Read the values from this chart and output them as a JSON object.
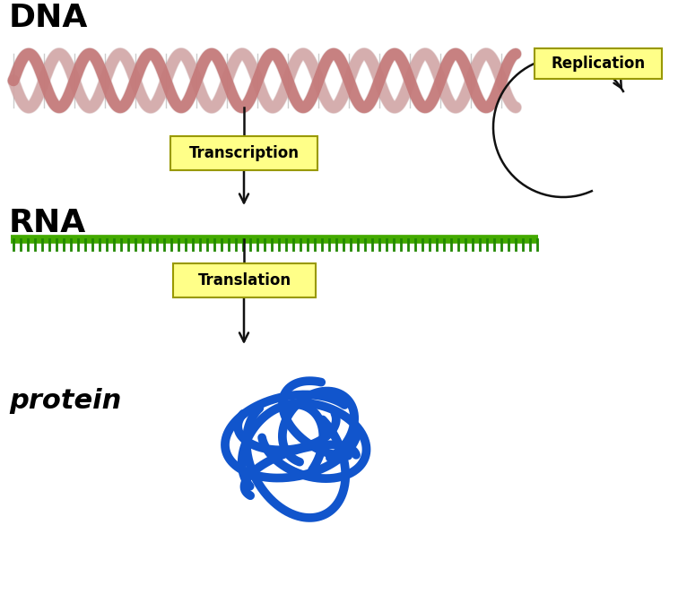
{
  "bg_color": "#ffffff",
  "dna_label": "DNA",
  "rna_label": "RNA",
  "protein_label": "protein",
  "transcription_label": "Transcription",
  "translation_label": "Translation",
  "replication_label": "Replication",
  "label_color": "#000000",
  "box_facecolor": "#ffff88",
  "box_edgecolor": "#999900",
  "dna_strand1_color": "#c47878",
  "dna_strand2_color": "#d4aaaa",
  "dna_rung_color": "#aaaaaa",
  "rna_bar_color": "#44aa00",
  "rna_teeth_color": "#228800",
  "protein_color": "#1155cc",
  "protein_edge_color": "#0033aa",
  "arrow_color": "#111111",
  "figure_width": 7.56,
  "figure_height": 6.82,
  "dpi": 100
}
